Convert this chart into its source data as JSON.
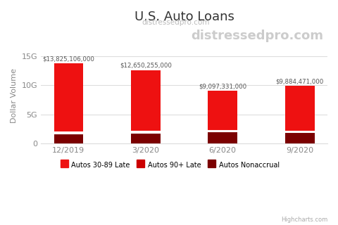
{
  "title": "U.S. Auto Loans",
  "subtitle": "distressedpro.com",
  "watermark": "distressedpro.com",
  "ylabel": "Dollar Volume",
  "categories": [
    "12/2019",
    "3/2020",
    "6/2020",
    "9/2020"
  ],
  "totals": [
    13825106000,
    12650255000,
    9097331000,
    9884471000
  ],
  "total_labels": [
    "$13,825,106,000",
    "$12,650,255,000",
    "$9,097,331,000",
    "$9,884,471,000"
  ],
  "nonaccrual": [
    1700000000,
    1850000000,
    2000000000,
    1900000000
  ],
  "late_90plus": [
    180000000,
    200000000,
    160000000,
    160000000
  ],
  "color_3089": "#EE1111",
  "color_90plus": "#CC0000",
  "color_nonaccrual": "#7B0000",
  "separator_color": "#FFFFFF",
  "background_color": "#FFFFFF",
  "grid_color": "#DDDDDD",
  "yticks": [
    0,
    5000000000,
    10000000000,
    15000000000
  ],
  "ytick_labels": [
    "0",
    "5G",
    "10G",
    "15G"
  ],
  "ylim": [
    0,
    16500000000
  ],
  "legend_labels": [
    "Autos 30-89 Late",
    "Autos 90+ Late",
    "Autos Nonaccrual"
  ],
  "footer": "Highcharts.com",
  "title_fontsize": 13,
  "axis_fontsize": 8,
  "bar_width": 0.38
}
